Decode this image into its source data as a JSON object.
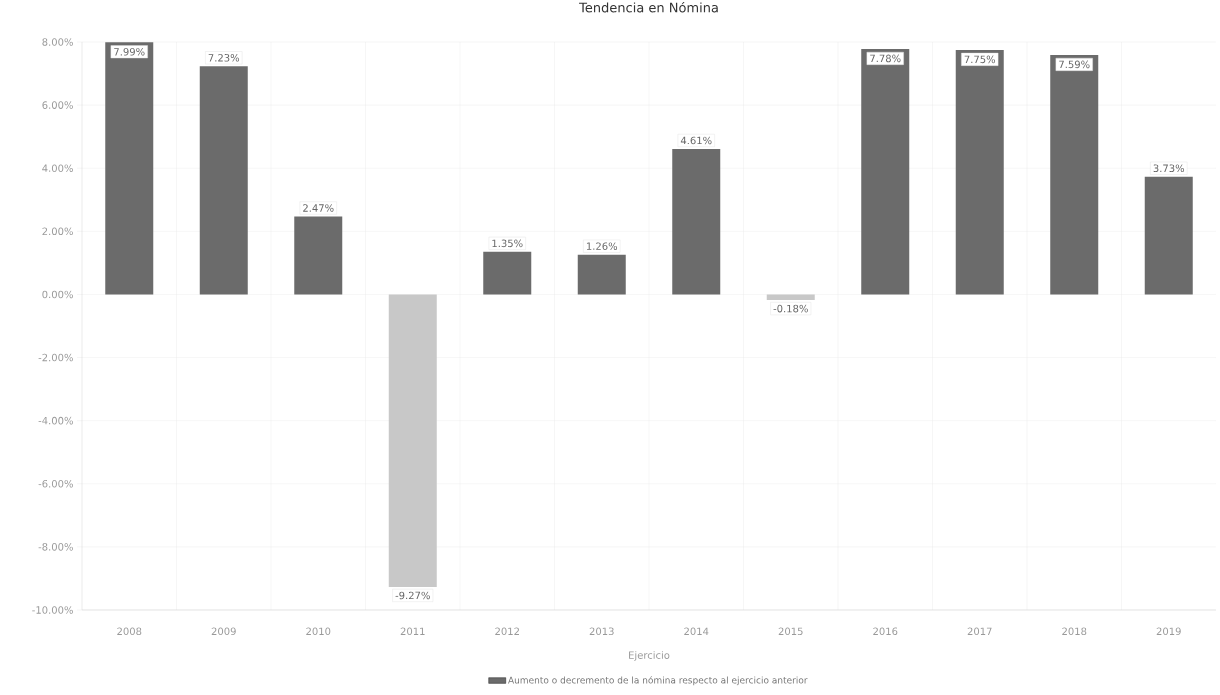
{
  "chart_data": {
    "type": "bar",
    "title": "Tendencia en Nómina",
    "xlabel": "Ejercicio",
    "categories": [
      "2008",
      "2009",
      "2010",
      "2011",
      "2012",
      "2013",
      "2014",
      "2015",
      "2016",
      "2017",
      "2018",
      "2019"
    ],
    "series": [
      {
        "name": "Aumento o decremento de la nómina respecto al ejercicio anterior",
        "color": "#6b6b6b",
        "colors": [
          "#6b6b6b",
          "#6b6b6b",
          "#6b6b6b",
          "#c8c8c8",
          "#6b6b6b",
          "#6b6b6b",
          "#6b6b6b",
          "#c8c8c8",
          "#6b6b6b",
          "#6b6b6b",
          "#6b6b6b",
          "#6b6b6b"
        ],
        "values": [
          7.99,
          7.23,
          2.47,
          -9.27,
          1.35,
          1.26,
          4.61,
          -0.18,
          7.78,
          7.75,
          7.59,
          3.73
        ],
        "value_labels": [
          "7.99%",
          "7.23%",
          "2.47%",
          "-9.27%",
          "1.35%",
          "1.26%",
          "4.61%",
          "-0.18%",
          "7.78%",
          "7.75%",
          "7.59%",
          "3.73%"
        ]
      }
    ],
    "ylim": [
      -10,
      8
    ],
    "yticks": [
      {
        "value": -10,
        "label": "-10.00%"
      },
      {
        "value": -8,
        "label": "-8.00%"
      },
      {
        "value": -6,
        "label": "-6.00%"
      },
      {
        "value": -4,
        "label": "-4.00%"
      },
      {
        "value": -2,
        "label": "-2.00%"
      },
      {
        "value": 0,
        "label": "0.00%"
      },
      {
        "value": 2,
        "label": "2.00%"
      },
      {
        "value": 4,
        "label": "4.00%"
      },
      {
        "value": 6,
        "label": "6.00%"
      },
      {
        "value": 8,
        "label": "8.00%"
      }
    ],
    "grid": true,
    "legend": "bottom"
  }
}
